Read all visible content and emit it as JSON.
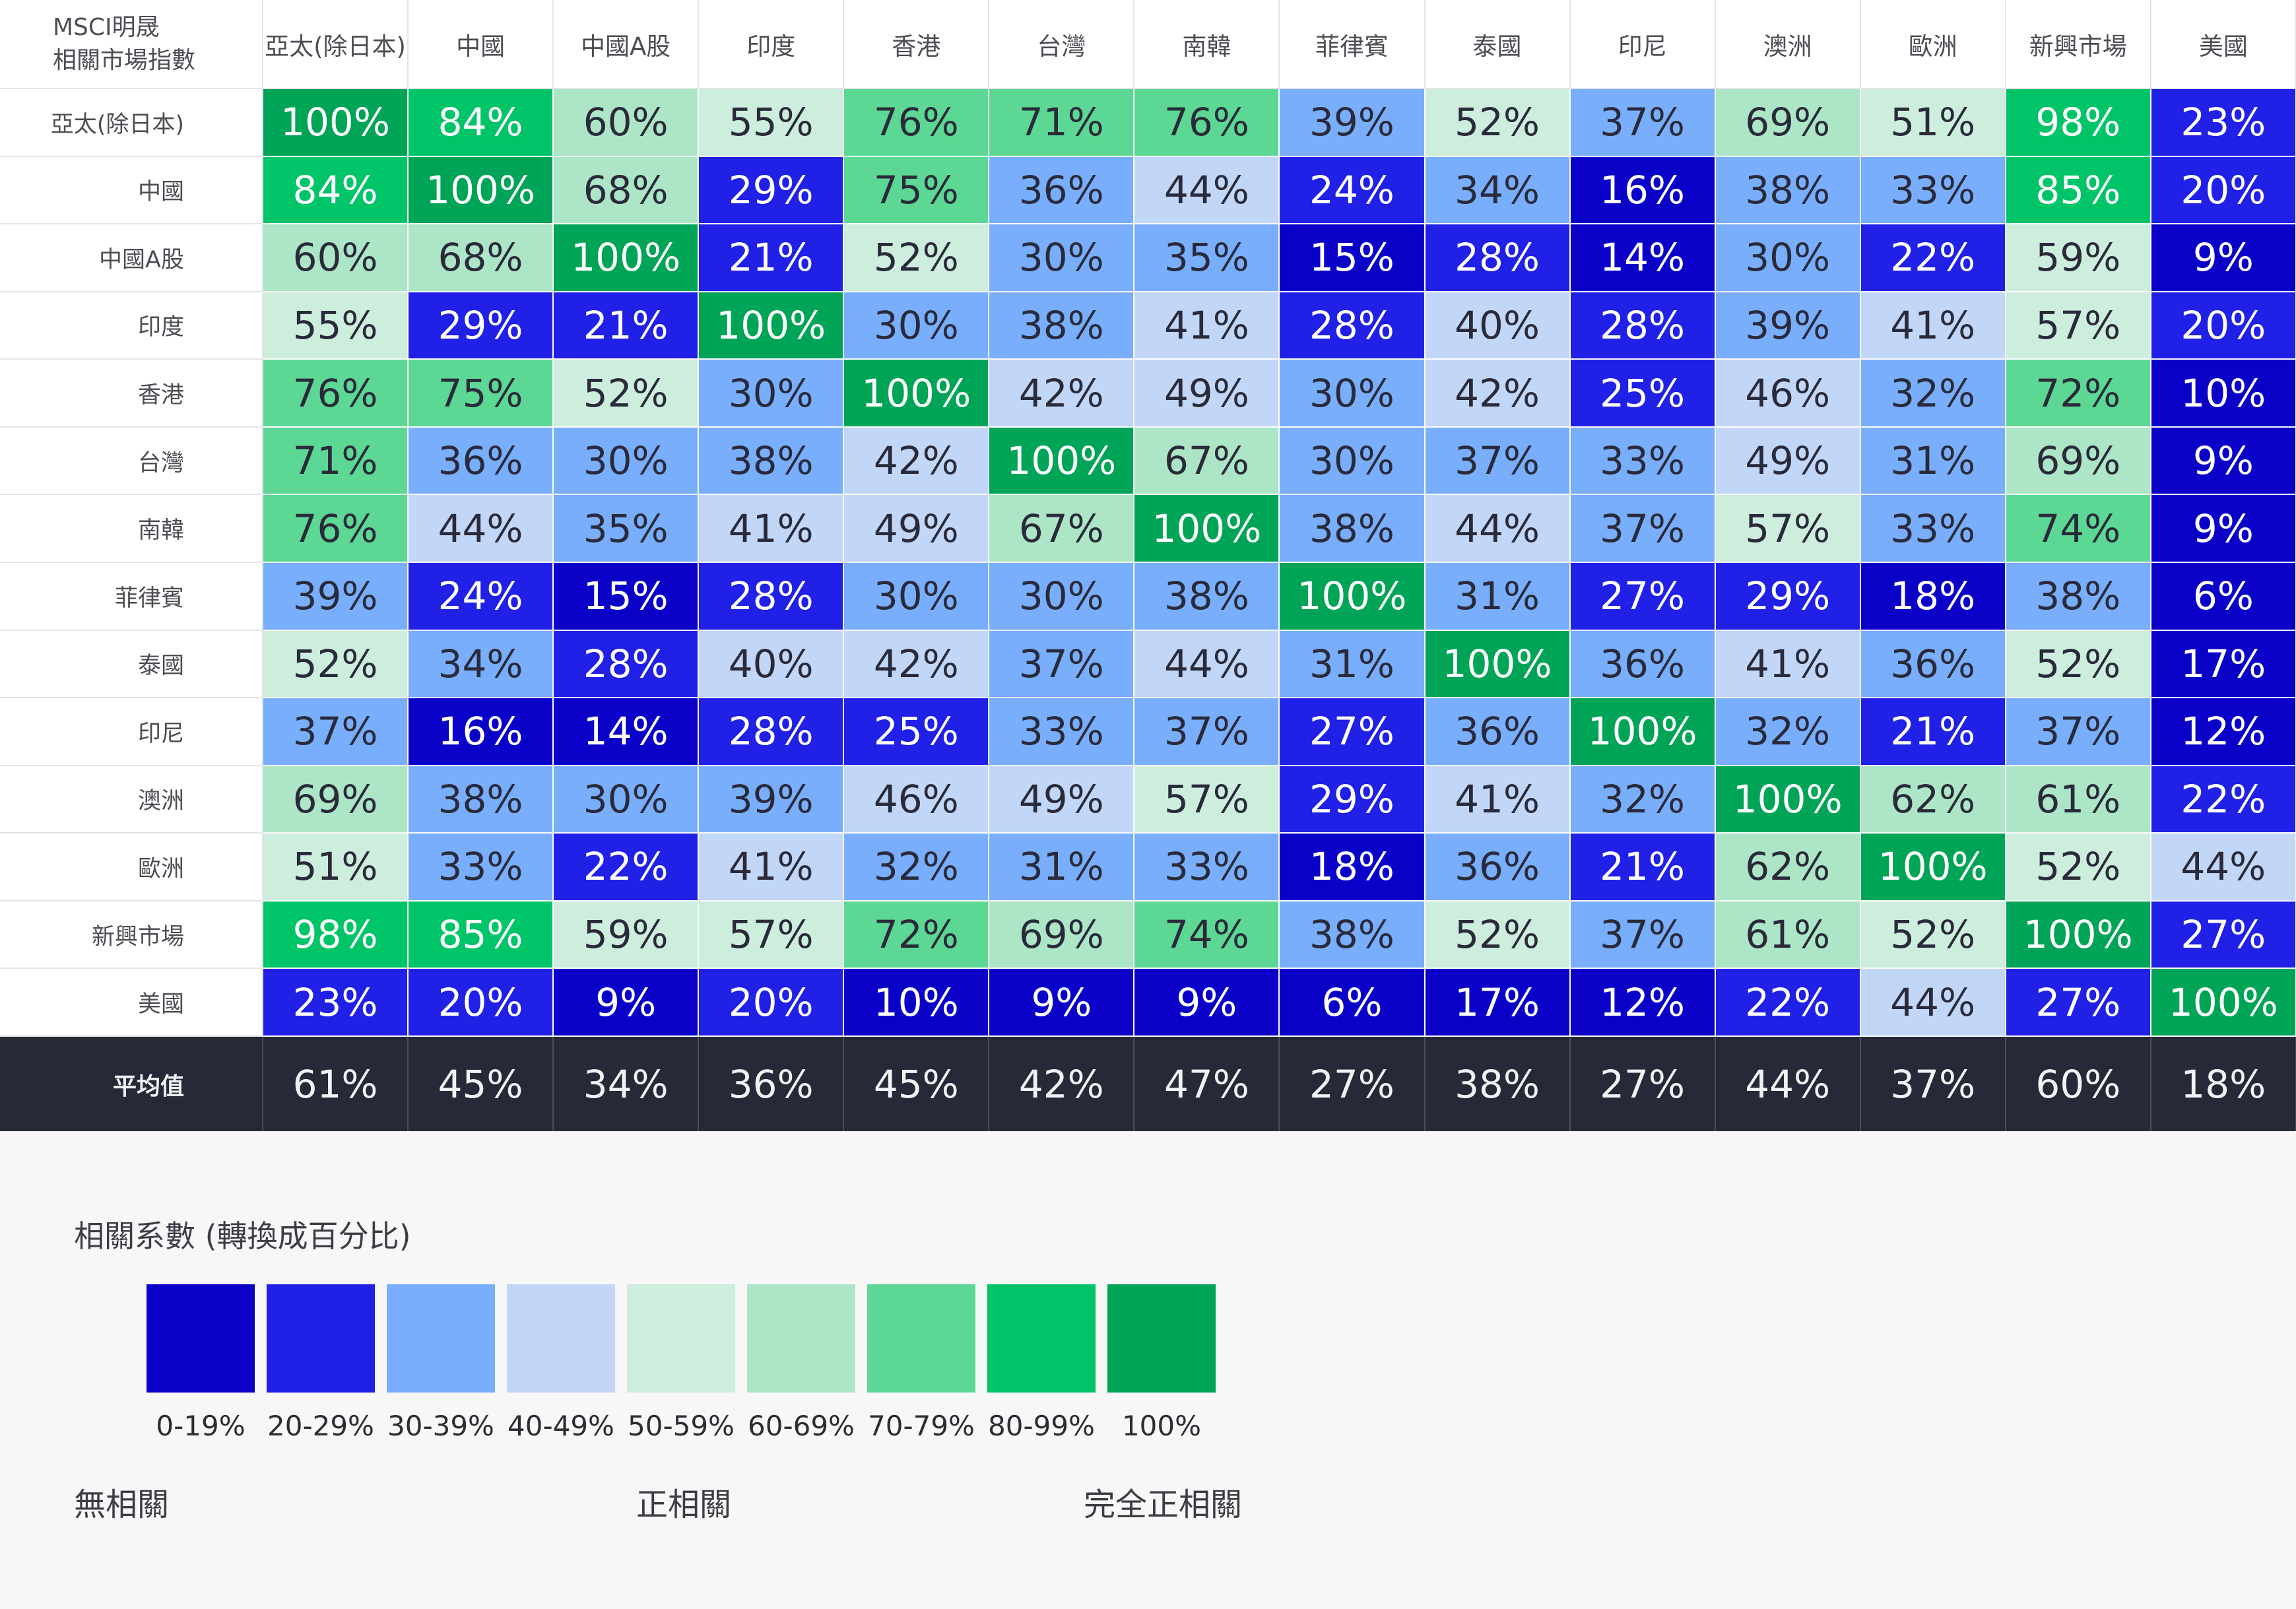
{
  "chart_data": {
    "type": "heatmap",
    "corner_label_line1": "MSCI明晟",
    "corner_label_line2": "相關市場指數",
    "columns": [
      "亞太(除日本)",
      "中國",
      "中國A股",
      "印度",
      "香港",
      "台灣",
      "南韓",
      "菲律賓",
      "泰國",
      "印尼",
      "澳洲",
      "歐洲",
      "新興市場",
      "美國"
    ],
    "rows": [
      "亞太(除日本)",
      "中國",
      "中國A股",
      "印度",
      "香港",
      "台灣",
      "南韓",
      "菲律賓",
      "泰國",
      "印尼",
      "澳洲",
      "歐洲",
      "新興市場",
      "美國"
    ],
    "values": [
      [
        100,
        84,
        60,
        55,
        76,
        71,
        76,
        39,
        52,
        37,
        69,
        51,
        98,
        23
      ],
      [
        84,
        100,
        68,
        29,
        75,
        36,
        44,
        24,
        34,
        16,
        38,
        33,
        85,
        20
      ],
      [
        60,
        68,
        100,
        21,
        52,
        30,
        35,
        15,
        28,
        14,
        30,
        22,
        59,
        9
      ],
      [
        55,
        29,
        21,
        100,
        30,
        38,
        41,
        28,
        40,
        28,
        39,
        41,
        57,
        20
      ],
      [
        76,
        75,
        52,
        30,
        100,
        42,
        49,
        30,
        42,
        25,
        46,
        32,
        72,
        10
      ],
      [
        71,
        36,
        30,
        38,
        42,
        100,
        67,
        30,
        37,
        33,
        49,
        31,
        69,
        9
      ],
      [
        76,
        44,
        35,
        41,
        49,
        67,
        100,
        38,
        44,
        37,
        57,
        33,
        74,
        9
      ],
      [
        39,
        24,
        15,
        28,
        30,
        30,
        38,
        100,
        31,
        27,
        29,
        18,
        38,
        6
      ],
      [
        52,
        34,
        28,
        40,
        42,
        37,
        44,
        31,
        100,
        36,
        41,
        36,
        52,
        17
      ],
      [
        37,
        16,
        14,
        28,
        25,
        33,
        37,
        27,
        36,
        100,
        32,
        21,
        37,
        12
      ],
      [
        69,
        38,
        30,
        39,
        46,
        49,
        57,
        29,
        41,
        32,
        100,
        62,
        61,
        22
      ],
      [
        51,
        33,
        22,
        41,
        32,
        31,
        33,
        18,
        36,
        21,
        62,
        100,
        52,
        44
      ],
      [
        98,
        85,
        59,
        57,
        72,
        69,
        74,
        38,
        52,
        37,
        61,
        52,
        100,
        27
      ],
      [
        23,
        20,
        9,
        20,
        10,
        9,
        9,
        6,
        17,
        12,
        22,
        44,
        27,
        100
      ]
    ],
    "unit": "%",
    "average_label": "平均值",
    "averages": [
      61,
      45,
      34,
      36,
      45,
      42,
      47,
      27,
      38,
      27,
      44,
      37,
      60,
      18
    ],
    "legend_title": "相關系數 (轉換成百分比)",
    "legend": [
      {
        "label": "0-19%",
        "min": 0,
        "max": 19,
        "color": "#0a00c8",
        "text_color": "#ffffff"
      },
      {
        "label": "20-29%",
        "min": 20,
        "max": 29,
        "color": "#2020e6",
        "text_color": "#ffffff"
      },
      {
        "label": "30-39%",
        "min": 30,
        "max": 39,
        "color": "#78aefc",
        "text_color": "#2a2a3a"
      },
      {
        "label": "40-49%",
        "min": 40,
        "max": 49,
        "color": "#c2d7f7",
        "text_color": "#2a2a3a"
      },
      {
        "label": "50-59%",
        "min": 50,
        "max": 59,
        "color": "#cdeedd",
        "text_color": "#2a2a3a"
      },
      {
        "label": "60-69%",
        "min": 60,
        "max": 69,
        "color": "#ace6c6",
        "text_color": "#2a2a3a"
      },
      {
        "label": "70-79%",
        "min": 70,
        "max": 79,
        "color": "#5cd794",
        "text_color": "#2a2a3a"
      },
      {
        "label": "80-99%",
        "min": 80,
        "max": 99,
        "color": "#00c468",
        "text_color": "#ffffff"
      },
      {
        "label": "100%",
        "min": 100,
        "max": 100,
        "color": "#00a456",
        "text_color": "#ffffff"
      }
    ],
    "scale_labels": {
      "low": "無相關",
      "mid": "正相關",
      "high": "完全正相關"
    }
  }
}
